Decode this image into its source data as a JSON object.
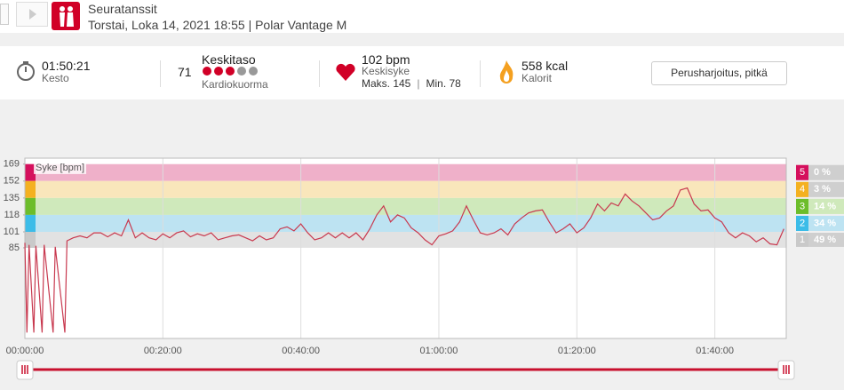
{
  "header": {
    "title": "Seuratanssit",
    "subtitle": "Torstai, Loka 14, 2021 18:55 | Polar Vantage M"
  },
  "stats": {
    "duration": "01:50:21",
    "duration_label": "Kesto",
    "cardio_load": 71,
    "cardio_level": "Keskitaso",
    "cardio_label": "Kardiokuorma",
    "avg_hr": "102 bpm",
    "avg_hr_label": "Keskisyke",
    "max_hr": "Maks. 145",
    "min_hr": "Min. 78",
    "calories": "558 kcal",
    "calories_label": "Kalorit"
  },
  "sport_button": "Perusharjoitus, pitkä",
  "chart_data": {
    "type": "line",
    "y_label": "Syke [bpm]",
    "color": "#c8394f",
    "x": [
      0,
      0.3,
      0.6,
      1.3,
      1.6,
      2.5,
      2.8,
      4.1,
      4.4,
      5.8,
      6.1,
      7,
      8,
      9,
      10,
      11,
      12,
      13,
      14,
      15,
      16,
      17,
      18,
      19,
      20,
      21,
      22,
      23,
      24,
      25,
      26,
      27,
      28,
      29,
      30,
      31,
      32,
      33,
      34,
      35,
      36,
      37,
      38,
      39,
      40,
      41,
      42,
      43,
      44,
      45,
      46,
      47,
      48,
      49,
      50,
      51,
      52,
      53,
      54,
      55,
      56,
      57,
      58,
      59,
      60,
      61,
      62,
      63,
      64,
      65,
      66,
      67,
      68,
      69,
      70,
      71,
      72,
      73,
      74,
      75,
      76,
      77,
      78,
      79,
      80,
      81,
      82,
      83,
      84,
      85,
      86,
      87,
      88,
      89,
      90,
      91,
      92,
      93,
      94,
      95,
      96,
      97,
      98,
      99,
      100,
      101,
      102,
      103,
      104,
      105,
      106,
      107,
      108,
      109,
      110
    ],
    "values": [
      90,
      0,
      88,
      0,
      87,
      0,
      88,
      0,
      86,
      0,
      92,
      95,
      97,
      95,
      100,
      100,
      96,
      100,
      97,
      113,
      95,
      100,
      95,
      93,
      99,
      95,
      100,
      102,
      96,
      99,
      97,
      100,
      93,
      95,
      97,
      98,
      95,
      92,
      97,
      93,
      95,
      104,
      106,
      102,
      109,
      100,
      93,
      95,
      100,
      95,
      100,
      95,
      100,
      93,
      104,
      118,
      127,
      111,
      118,
      115,
      105,
      100,
      93,
      88,
      97,
      99,
      102,
      111,
      127,
      113,
      100,
      98,
      100,
      104,
      98,
      109,
      115,
      120,
      122,
      123,
      111,
      100,
      104,
      109,
      100,
      105,
      115,
      129,
      122,
      130,
      127,
      139,
      132,
      127,
      120,
      113,
      115,
      122,
      127,
      143,
      145,
      129,
      122,
      123,
      115,
      111,
      100,
      95,
      100,
      97,
      91,
      95,
      89,
      88,
      104
    ],
    "xlim": [
      0,
      110.35
    ],
    "ylim": [
      -6,
      175
    ],
    "xticks": [
      {
        "value": 0,
        "label": "00:00:00"
      },
      {
        "value": 20,
        "label": "00:20:00"
      },
      {
        "value": 40,
        "label": "00:40:00"
      },
      {
        "value": 60,
        "label": "01:00:00"
      },
      {
        "value": 80,
        "label": "01:20:00"
      },
      {
        "value": 100,
        "label": "01:40:00"
      }
    ],
    "yticks": [
      85,
      101,
      118,
      135,
      152,
      169
    ],
    "grid": true,
    "zones": [
      {
        "zone": 5,
        "min": 152,
        "max": 169,
        "color": "#d5105d",
        "band": "#efb0c9",
        "share": 0,
        "share_label": "0 %"
      },
      {
        "zone": 4,
        "min": 135,
        "max": 152,
        "color": "#f4b120",
        "band": "#f9e6bb",
        "share": 3,
        "share_label": "3 %"
      },
      {
        "zone": 3,
        "min": 118,
        "max": 135,
        "color": "#6cbd2b",
        "band": "#cfe9bb",
        "share": 14,
        "share_label": "14 %"
      },
      {
        "zone": 2,
        "min": 101,
        "max": 118,
        "color": "#3cbce8",
        "band": "#bde3f2",
        "share": 34,
        "share_label": "34 %"
      },
      {
        "zone": 1,
        "min": 85,
        "max": 101,
        "color": "#c9c9c9",
        "band": "#e2e2e2",
        "share": 49,
        "share_label": "49 %"
      }
    ]
  }
}
